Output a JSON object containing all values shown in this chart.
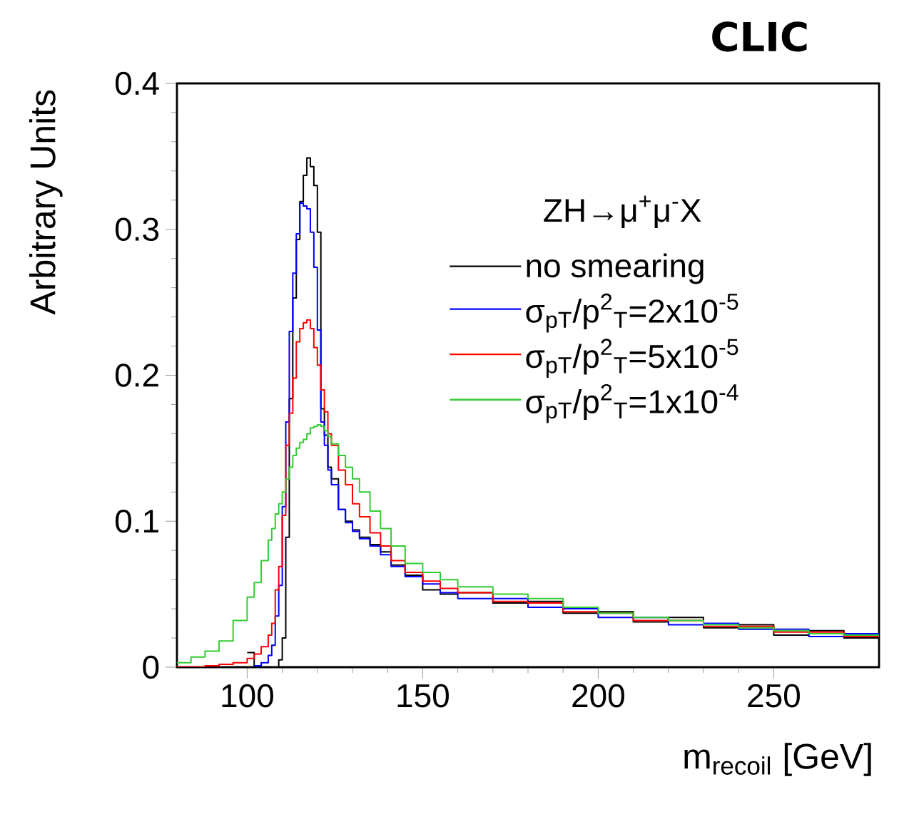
{
  "chart_data": {
    "type": "step",
    "title": "CLIC",
    "xlabel": "m$_{recoil}$ [GeV]",
    "ylabel": "Arbitrary Units",
    "legend_title": "ZH→μ$^{+}$μ$^{-}$X",
    "x": [
      80,
      84,
      88,
      92,
      96,
      100,
      102,
      104,
      106,
      107,
      108,
      109,
      110,
      111,
      112,
      113,
      114,
      115,
      116,
      117,
      118,
      119,
      120,
      121,
      122,
      123,
      124,
      126,
      128,
      130,
      132,
      135,
      138,
      141,
      145,
      150,
      155,
      160,
      170,
      180,
      190,
      200,
      210,
      220,
      230,
      240,
      250,
      260,
      270,
      280
    ],
    "series": [
      {
        "name": "no smearing",
        "color": "#000000",
        "values": [
          null,
          null,
          null,
          null,
          null,
          0.01,
          0,
          0,
          0,
          0,
          0,
          0.005,
          0.02,
          0.089,
          0.184,
          0.253,
          0.293,
          0.319,
          0.337,
          0.349,
          0.343,
          0.33,
          0.298,
          0.177,
          0.159,
          0.137,
          0.129,
          0.108,
          0.1,
          0.094,
          0.089,
          0.084,
          0.079,
          0.07,
          0.063,
          0.053,
          0.05,
          0.051,
          0.044,
          0.045,
          0.037,
          0.038,
          0.031,
          0.034,
          0.027,
          0.029,
          0.022,
          0.025,
          0.02,
          0.022
        ]
      },
      {
        "name": "σ$_{pT}$/p$^{2}$$_{T}$=2x10$^{-5}$",
        "color": "#0000ff",
        "values": [
          null,
          null,
          null,
          null,
          null,
          null,
          0.001,
          0.003,
          0.008,
          0.015,
          0.035,
          0.056,
          0.11,
          0.168,
          0.23,
          0.27,
          0.297,
          0.318,
          0.316,
          0.314,
          0.298,
          0.274,
          0.231,
          0.168,
          0.152,
          0.135,
          0.125,
          0.108,
          0.099,
          0.093,
          0.088,
          0.083,
          0.077,
          0.069,
          0.062,
          0.057,
          0.051,
          0.047,
          0.047,
          0.041,
          0.04,
          0.034,
          0.034,
          0.029,
          0.03,
          0.026,
          0.026,
          0.021,
          0.023,
          0.02
        ]
      },
      {
        "name": "σ$_{pT}$/p$^{2}$$_{T}$=5x10$^{-5}$",
        "color": "#ff0000",
        "values": [
          0,
          0,
          0.001,
          0.002,
          0.003,
          0.006,
          0.009,
          0.014,
          0.022,
          0.03,
          0.053,
          0.069,
          0.104,
          0.152,
          0.174,
          0.198,
          0.223,
          0.232,
          0.236,
          0.238,
          0.232,
          0.219,
          0.207,
          0.19,
          0.175,
          0.16,
          0.152,
          0.135,
          0.125,
          0.112,
          0.103,
          0.092,
          0.083,
          0.073,
          0.065,
          0.059,
          0.054,
          0.051,
          0.045,
          0.044,
          0.038,
          0.037,
          0.032,
          0.032,
          0.028,
          0.028,
          0.024,
          0.024,
          0.021,
          0.021
        ]
      },
      {
        "name": "σ$_{pT}$/p$^{2}$$_{T}$=1x10$^{-4}$",
        "color": "#33cc33",
        "values": [
          0.003,
          0.007,
          0.011,
          0.018,
          0.032,
          0.048,
          0.058,
          0.073,
          0.087,
          0.095,
          0.105,
          0.112,
          0.12,
          0.129,
          0.137,
          0.145,
          0.15,
          0.154,
          0.156,
          0.16,
          0.164,
          0.165,
          0.166,
          0.165,
          0.162,
          0.158,
          0.153,
          0.145,
          0.137,
          0.129,
          0.12,
          0.107,
          0.095,
          0.083,
          0.071,
          0.065,
          0.06,
          0.055,
          0.05,
          0.047,
          0.041,
          0.037,
          0.034,
          0.032,
          0.029,
          0.027,
          0.025,
          0.023,
          0.022,
          0.021
        ]
      }
    ],
    "xlim": [
      80,
      280
    ],
    "xticks": [
      100,
      150,
      200,
      250
    ],
    "ylim": [
      0,
      0.4
    ],
    "yticks": [
      0,
      0.1,
      0.2,
      0.3,
      0.4
    ],
    "grid": false,
    "legend": "top right"
  }
}
